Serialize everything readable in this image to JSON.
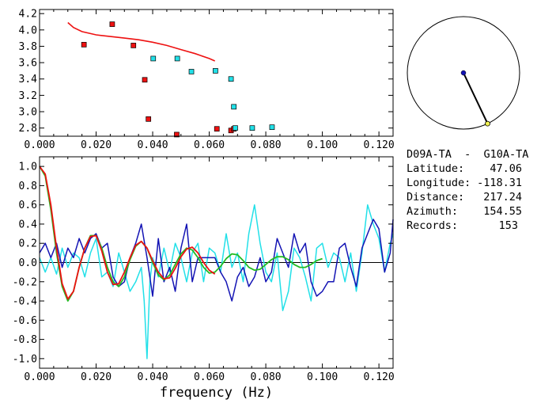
{
  "station_pair": "D09A-TA  -  G10A-TA",
  "info": [
    {
      "label": "Latitude:",
      "value": "47.06"
    },
    {
      "label": "Longitude:",
      "value": "-118.31"
    },
    {
      "label": "Distance:",
      "value": "217.24"
    },
    {
      "label": "Azimuth:",
      "value": "154.55"
    },
    {
      "label": "Records:",
      "value": "153"
    }
  ],
  "colors": {
    "red": "#ee1111",
    "green": "#22bb22",
    "blue": "#1414b4",
    "cyan": "#22e0e8",
    "black": "#000000"
  },
  "chart_data": [
    {
      "type": "scatter",
      "title": "",
      "xlabel": "",
      "ylabel": "",
      "xlim": [
        0,
        0.125
      ],
      "ylim": [
        2.7,
        4.25
      ],
      "x_ticks": [
        "0.000",
        "0.020",
        "0.040",
        "0.060",
        "0.080",
        "0.100",
        "0.120"
      ],
      "y_ticks": [
        "2.8",
        "3.0",
        "3.2",
        "3.4",
        "3.6",
        "3.8",
        "4.0",
        "4.2"
      ],
      "curve": {
        "color": "red",
        "x": [
          0.01,
          0.012,
          0.015,
          0.02,
          0.025,
          0.03,
          0.035,
          0.04,
          0.045,
          0.05,
          0.055,
          0.06,
          0.062
        ],
        "y": [
          4.09,
          4.03,
          3.98,
          3.94,
          3.92,
          3.9,
          3.88,
          3.85,
          3.81,
          3.76,
          3.71,
          3.65,
          3.62
        ]
      },
      "series": [
        {
          "color": "red",
          "x": [
            0.0157,
            0.0257,
            0.0332,
            0.0372,
            0.0385,
            0.0485,
            0.0627,
            0.0677,
            0.0687
          ],
          "y": [
            3.82,
            4.07,
            3.81,
            3.39,
            2.91,
            2.72,
            2.79,
            2.77,
            2.79
          ]
        },
        {
          "color": "cyan",
          "x": [
            0.0402,
            0.0487,
            0.0537,
            0.0622,
            0.0677,
            0.0687,
            0.0692,
            0.0752,
            0.0822
          ],
          "y": [
            3.65,
            3.65,
            3.49,
            3.5,
            3.4,
            3.06,
            2.8,
            2.8,
            2.81
          ]
        }
      ]
    },
    {
      "type": "line",
      "title": "",
      "xlabel": "frequency (Hz)",
      "ylabel": "",
      "xlim": [
        0,
        0.125
      ],
      "ylim": [
        -1.1,
        1.1
      ],
      "x_ticks": [
        "0.000",
        "0.020",
        "0.040",
        "0.060",
        "0.080",
        "0.100",
        "0.120"
      ],
      "y_ticks": [
        "1.0",
        "0.8",
        "0.6",
        "0.4",
        "0.2",
        "0.0",
        "-0.2",
        "-0.4",
        "-0.6",
        "-0.8",
        "-1.0"
      ],
      "series": [
        {
          "color": "cyan",
          "x": [
            0.0,
            0.002,
            0.004,
            0.006,
            0.008,
            0.01,
            0.012,
            0.014,
            0.016,
            0.018,
            0.02,
            0.022,
            0.024,
            0.026,
            0.028,
            0.03,
            0.032,
            0.034,
            0.036,
            0.037,
            0.038,
            0.039,
            0.04,
            0.042,
            0.044,
            0.046,
            0.048,
            0.05,
            0.052,
            0.054,
            0.056,
            0.058,
            0.06,
            0.062,
            0.064,
            0.066,
            0.068,
            0.07,
            0.072,
            0.074,
            0.076,
            0.078,
            0.08,
            0.082,
            0.084,
            0.086,
            0.088,
            0.09,
            0.092,
            0.094,
            0.096,
            0.098,
            0.1,
            0.102,
            0.104,
            0.106,
            0.108,
            0.11,
            0.112,
            0.114,
            0.116,
            0.118,
            0.12,
            0.122,
            0.124,
            0.125
          ],
          "y": [
            0.05,
            -0.1,
            0.05,
            -0.12,
            0.15,
            -0.05,
            0.1,
            0.05,
            -0.15,
            0.1,
            0.25,
            -0.15,
            -0.1,
            -0.25,
            0.1,
            -0.1,
            -0.3,
            -0.2,
            -0.05,
            -0.4,
            -1.0,
            -0.2,
            0.05,
            -0.15,
            0.15,
            -0.1,
            0.2,
            0.05,
            -0.2,
            0.1,
            0.2,
            -0.2,
            0.15,
            0.1,
            -0.1,
            0.3,
            -0.05,
            0.1,
            -0.2,
            0.3,
            0.6,
            0.2,
            -0.1,
            -0.2,
            0.1,
            -0.5,
            -0.3,
            0.15,
            0.05,
            -0.15,
            -0.4,
            0.15,
            0.2,
            -0.05,
            0.1,
            0.05,
            -0.2,
            0.1,
            -0.3,
            0.1,
            0.6,
            0.4,
            0.25,
            -0.1,
            0.2,
            0.3
          ]
        },
        {
          "color": "blue",
          "x": [
            0.0,
            0.002,
            0.004,
            0.006,
            0.008,
            0.01,
            0.012,
            0.014,
            0.016,
            0.018,
            0.02,
            0.022,
            0.024,
            0.026,
            0.028,
            0.03,
            0.032,
            0.034,
            0.036,
            0.038,
            0.04,
            0.042,
            0.044,
            0.046,
            0.048,
            0.05,
            0.052,
            0.054,
            0.056,
            0.058,
            0.06,
            0.062,
            0.064,
            0.066,
            0.068,
            0.07,
            0.072,
            0.074,
            0.076,
            0.078,
            0.08,
            0.082,
            0.084,
            0.086,
            0.088,
            0.09,
            0.092,
            0.094,
            0.096,
            0.098,
            0.1,
            0.102,
            0.104,
            0.106,
            0.108,
            0.11,
            0.112,
            0.114,
            0.116,
            0.118,
            0.12,
            0.122,
            0.124,
            0.125
          ],
          "y": [
            0.1,
            0.2,
            0.05,
            0.2,
            -0.05,
            0.15,
            0.05,
            0.25,
            0.1,
            0.25,
            0.3,
            0.15,
            0.2,
            -0.15,
            -0.25,
            -0.2,
            0.05,
            0.2,
            0.4,
            0.05,
            -0.35,
            0.25,
            -0.2,
            -0.05,
            -0.3,
            0.15,
            0.4,
            -0.2,
            0.05,
            0.05,
            0.05,
            0.05,
            -0.1,
            -0.2,
            -0.4,
            -0.15,
            -0.05,
            -0.25,
            -0.15,
            0.05,
            -0.2,
            -0.1,
            0.25,
            0.1,
            -0.05,
            0.3,
            0.1,
            0.2,
            -0.2,
            -0.35,
            -0.3,
            -0.2,
            -0.2,
            0.15,
            0.2,
            -0.05,
            -0.25,
            0.15,
            0.3,
            0.45,
            0.35,
            -0.1,
            0.1,
            0.45
          ]
        },
        {
          "color": "green",
          "x": [
            0.0,
            0.002,
            0.004,
            0.006,
            0.008,
            0.01,
            0.012,
            0.014,
            0.016,
            0.018,
            0.02,
            0.022,
            0.024,
            0.026,
            0.028,
            0.03,
            0.032,
            0.034,
            0.036,
            0.038,
            0.04,
            0.042,
            0.044,
            0.046,
            0.048,
            0.05,
            0.052,
            0.054,
            0.056,
            0.058,
            0.06,
            0.062,
            0.064,
            0.066,
            0.068,
            0.07,
            0.072,
            0.074,
            0.076,
            0.078,
            0.08,
            0.082,
            0.084,
            0.086,
            0.088,
            0.09,
            0.092,
            0.094,
            0.096,
            0.098,
            0.1
          ],
          "y": [
            1.0,
            0.9,
            0.55,
            0.1,
            -0.25,
            -0.4,
            -0.3,
            -0.05,
            0.15,
            0.28,
            0.28,
            0.15,
            -0.05,
            -0.2,
            -0.25,
            -0.15,
            0.03,
            0.17,
            0.22,
            0.15,
            0.0,
            -0.13,
            -0.18,
            -0.13,
            -0.02,
            0.09,
            0.15,
            0.13,
            0.05,
            -0.05,
            -0.11,
            -0.1,
            -0.04,
            0.04,
            0.09,
            0.08,
            0.02,
            -0.05,
            -0.08,
            -0.07,
            -0.02,
            0.03,
            0.06,
            0.06,
            0.03,
            -0.02,
            -0.05,
            -0.05,
            -0.02,
            0.02,
            0.04
          ]
        },
        {
          "color": "red",
          "x": [
            0.0,
            0.002,
            0.004,
            0.006,
            0.008,
            0.01,
            0.012,
            0.014,
            0.016,
            0.018,
            0.02,
            0.022,
            0.024,
            0.026,
            0.028,
            0.03,
            0.032,
            0.034,
            0.036,
            0.038,
            0.04,
            0.042,
            0.044,
            0.046,
            0.048,
            0.05,
            0.052,
            0.054,
            0.056,
            0.058,
            0.06,
            0.062
          ],
          "y": [
            1.0,
            0.92,
            0.6,
            0.15,
            -0.22,
            -0.38,
            -0.3,
            -0.05,
            0.15,
            0.27,
            0.28,
            0.12,
            -0.1,
            -0.23,
            -0.22,
            -0.1,
            0.05,
            0.18,
            0.22,
            0.15,
            0.02,
            -0.1,
            -0.17,
            -0.16,
            -0.06,
            0.06,
            0.14,
            0.16,
            0.1,
            0.0,
            -0.08,
            -0.12
          ]
        }
      ]
    }
  ],
  "azimuth_dial": {
    "azimuth_deg": 154.55,
    "center_color": "blue",
    "endpoint_color": "yellow"
  }
}
